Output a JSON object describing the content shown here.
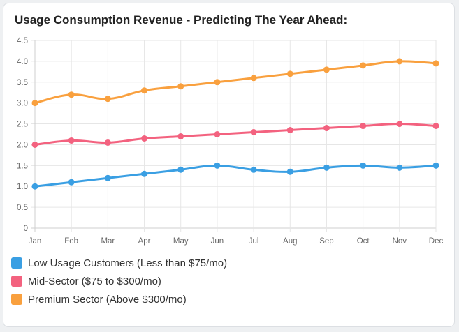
{
  "chart_data": {
    "type": "line",
    "title": "Usage Consumption Revenue - Predicting The Year Ahead:",
    "categories": [
      "Jan",
      "Feb",
      "Mar",
      "Apr",
      "May",
      "Jun",
      "Jul",
      "Aug",
      "Sep",
      "Oct",
      "Nov",
      "Dec"
    ],
    "ylim": [
      0,
      4.5
    ],
    "yticks": [
      "0",
      "0.5",
      "1.0",
      "1.5",
      "2.0",
      "2.5",
      "3.0",
      "3.5",
      "4.0",
      "4.5"
    ],
    "grid": true,
    "legend_position": "bottom-left",
    "series": [
      {
        "name": "Low Usage Customers (Less than $75/mo)",
        "color": "#3a9fe3",
        "values": [
          1.0,
          1.1,
          1.2,
          1.3,
          1.4,
          1.5,
          1.4,
          1.35,
          1.45,
          1.5,
          1.45,
          1.5
        ]
      },
      {
        "name": "Mid-Sector ($75 to $300/mo)",
        "color": "#f3627f",
        "values": [
          2.0,
          2.1,
          2.05,
          2.15,
          2.2,
          2.25,
          2.3,
          2.35,
          2.4,
          2.45,
          2.5,
          2.45
        ]
      },
      {
        "name": "Premium Sector (Above $300/mo)",
        "color": "#f9a03e",
        "values": [
          3.0,
          3.2,
          3.1,
          3.3,
          3.4,
          3.5,
          3.6,
          3.7,
          3.8,
          3.9,
          4.0,
          3.95
        ]
      }
    ]
  }
}
